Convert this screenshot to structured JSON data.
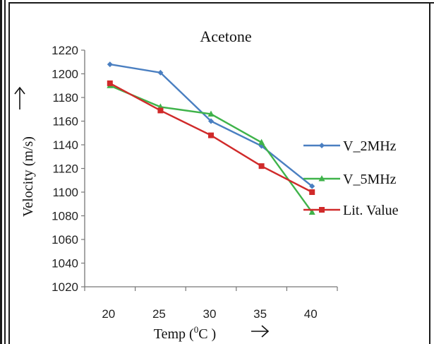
{
  "chart_data": {
    "type": "line",
    "title": "Acetone",
    "xlabel_prefix": "Temp (",
    "xlabel_sup": "0",
    "xlabel_suffix": "C )",
    "ylabel": "Velocity (m/s)",
    "categories": [
      "20",
      "25",
      "30",
      "35",
      "40"
    ],
    "x": [
      20,
      25,
      30,
      35,
      40
    ],
    "ylim": [
      1020,
      1220
    ],
    "yticks": [
      1020,
      1040,
      1060,
      1080,
      1100,
      1120,
      1140,
      1160,
      1180,
      1200,
      1220
    ],
    "grid": false,
    "legend_position": "right",
    "series": [
      {
        "name": "V_2MHz",
        "values": [
          1208,
          1201,
          1160,
          1139,
          1105
        ],
        "color": "#4a7fc1",
        "marker": "diamond"
      },
      {
        "name": "V_5MHz",
        "values": [
          1190,
          1172,
          1166,
          1142,
          1083
        ],
        "color": "#3fb34a",
        "marker": "triangle"
      },
      {
        "name": "Lit. Value",
        "values": [
          1192,
          1169,
          1148,
          1122,
          1100
        ],
        "color": "#d02a2a",
        "marker": "square"
      }
    ]
  }
}
